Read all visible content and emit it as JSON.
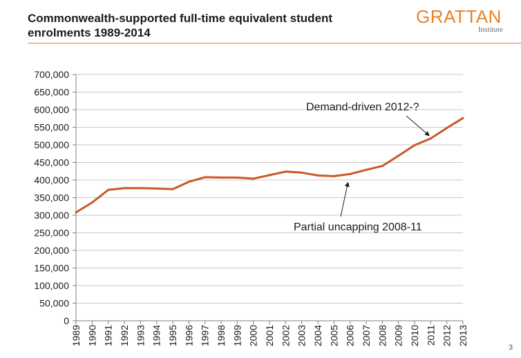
{
  "header": {
    "title_line1": "Commonwealth-supported full-time equivalent student",
    "title_line2": "enrolments 1989-2014",
    "logo_main": "GRATTAN",
    "logo_sub": "Institute",
    "accent_color": "#e8822a"
  },
  "footer": {
    "page_number": "3"
  },
  "chart_data": {
    "type": "line",
    "title": "",
    "xlabel": "",
    "ylabel": "",
    "categories": [
      "1989",
      "1990",
      "1991",
      "1992",
      "1993",
      "1994",
      "1995",
      "1996",
      "1997",
      "1998",
      "1999",
      "2000",
      "2001",
      "2002",
      "2003",
      "2004",
      "2005",
      "2006",
      "2007",
      "2008",
      "2009",
      "2010",
      "2011",
      "2012",
      "2013"
    ],
    "series": [
      {
        "values": [
          308000,
          336000,
          372000,
          377000,
          377000,
          376000,
          374000,
          395000,
          408000,
          407000,
          407000,
          404000,
          414000,
          424000,
          421000,
          413000,
          411000,
          417000,
          429000,
          440000,
          469000,
          499000,
          518000,
          548000,
          576000
        ],
        "color": "#c8582a"
      }
    ],
    "ylim": [
      0,
      700000
    ],
    "yticks": [
      "0",
      "50,000",
      "100,000",
      "150,000",
      "200,000",
      "250,000",
      "300,000",
      "350,000",
      "400,000",
      "450,000",
      "500,000",
      "550,000",
      "600,000",
      "650,000",
      "700,000"
    ],
    "grid": true,
    "legend": "none",
    "annotations": [
      {
        "text": "Demand-driven 2012-?",
        "points_to_year": "2011",
        "points_to_value": 518000
      },
      {
        "text": "Partial uncapping 2008-11",
        "points_to_year": "2006",
        "points_to_value": 417000
      }
    ]
  }
}
